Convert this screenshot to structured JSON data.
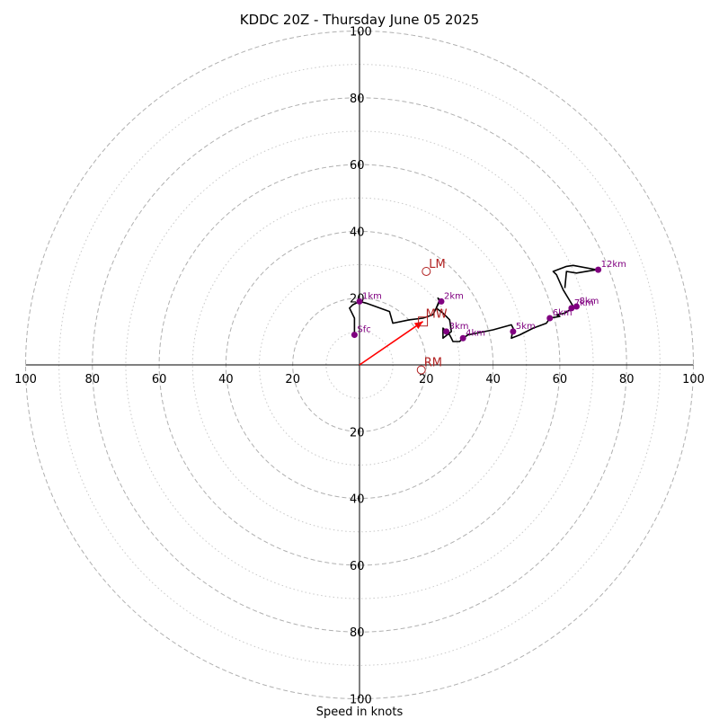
{
  "chart_data": {
    "type": "scatter",
    "title": "KDDC 20Z - Thursday June 05 2025",
    "xlabel": "Speed in knots",
    "ylabel": "",
    "xlim": [
      -100,
      100
    ],
    "ylim": [
      -100,
      100
    ],
    "ring_major": [
      20,
      40,
      60,
      80,
      100
    ],
    "ring_minor": [
      10,
      30,
      50,
      70,
      90
    ],
    "x_tick_labels": [
      "100",
      "80",
      "60",
      "40",
      "20",
      "20",
      "40",
      "60",
      "80",
      "100"
    ],
    "x_tick_values": [
      -100,
      -80,
      -60,
      -40,
      -20,
      20,
      40,
      60,
      80,
      100
    ],
    "y_tick_labels": [
      "100",
      "80",
      "60",
      "40",
      "20",
      "20",
      "40",
      "60",
      "80",
      "100"
    ],
    "y_tick_values": [
      100,
      80,
      60,
      40,
      20,
      -20,
      -40,
      -60,
      -80,
      -100
    ],
    "hodograph": {
      "u": [
        -1.5,
        -1.5,
        -3,
        -2,
        0,
        2,
        9,
        10,
        15,
        19,
        22,
        23,
        24,
        23.5,
        24,
        23,
        25,
        27,
        27.5,
        25,
        25,
        27,
        27.5,
        28,
        30,
        30.5,
        31,
        32.5,
        40,
        45.5,
        46,
        45.5,
        48,
        52,
        56,
        57,
        60,
        59,
        61.5,
        63,
        63.5,
        64,
        61,
        59,
        58,
        62,
        64,
        71,
        65,
        62,
        61.5
      ],
      "v": [
        9,
        14,
        17,
        18,
        19,
        18.5,
        16,
        12.5,
        13.5,
        14,
        15,
        17,
        19,
        20,
        19.5,
        17,
        15.5,
        13.5,
        10,
        8,
        11,
        9,
        8,
        7,
        7,
        7.5,
        8,
        9,
        10.5,
        12,
        11,
        8,
        9,
        11,
        12.5,
        14,
        14.5,
        15,
        15.5,
        16.5,
        17,
        17.5,
        22.5,
        27,
        28,
        29.5,
        29.8,
        28.5,
        27.5,
        28,
        23
      ]
    },
    "height_points": [
      {
        "label": "Sfc",
        "u": -1.5,
        "v": 9
      },
      {
        "label": "1km",
        "u": 0,
        "v": 19
      },
      {
        "label": "2km",
        "u": 24.5,
        "v": 19
      },
      {
        "label": "3km",
        "u": 26,
        "v": 10
      },
      {
        "label": "4km",
        "u": 31,
        "v": 8
      },
      {
        "label": "5km",
        "u": 46,
        "v": 10
      },
      {
        "label": "6km",
        "u": 57,
        "v": 14
      },
      {
        "label": "7km",
        "u": 63.5,
        "v": 17
      },
      {
        "label": "8km",
        "u": 65,
        "v": 17.5
      },
      {
        "label": "12km",
        "u": 71.5,
        "v": 28.5
      }
    ],
    "markers": [
      {
        "label": "LM",
        "u": 20,
        "v": 28,
        "shape": "circle"
      },
      {
        "label": "MW",
        "u": 19,
        "v": 13,
        "shape": "square"
      },
      {
        "label": "RM",
        "u": 18.5,
        "v": -1.5,
        "shape": "circle"
      }
    ],
    "mean_wind_vector": {
      "u": 19,
      "v": 13
    },
    "colors": {
      "hodograph": "#000000",
      "height_points": "#800080",
      "markers": "#b22222",
      "vector": "#ff0000",
      "rings": "#b0b0b0"
    }
  }
}
